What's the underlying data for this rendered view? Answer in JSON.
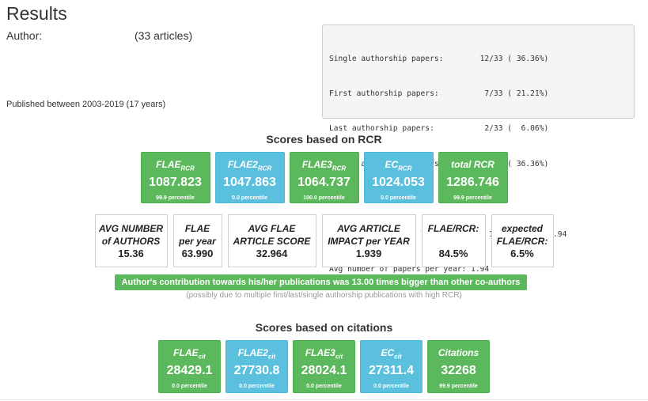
{
  "header": {
    "title": "Results",
    "author_label": "Author:",
    "articles": "(33 articles)",
    "published": "Published between 2003-2019 (17 years)"
  },
  "stats": [
    "Single authorship papers:        12/33 ( 36.36%)",
    "First authorship papers:          7/33 ( 21.21%)",
    "Last authorship papers:           2/33 (  6.06%)",
    "Middle authorship papers:        12/33 ( 36.36%)",
    "",
    "H-index 22, M-index 1.29, fH-index 16, fM-index 0.94",
    "Avg number of papers per year: 1.94"
  ],
  "rcr": {
    "heading": "Scores based on RCR",
    "tiles": [
      {
        "name": "FLAE",
        "sub": "RCR",
        "value": "1087.823",
        "percentile": "99.9 percentile",
        "color": "#5cb85c"
      },
      {
        "name": "FLAE2",
        "sub": "RCR",
        "value": "1047.863",
        "percentile": "0.0 percentile",
        "color": "#5bc0de"
      },
      {
        "name": "FLAE3",
        "sub": "RCR",
        "value": "1064.737",
        "percentile": "100.0 percentile",
        "color": "#5cb85c"
      },
      {
        "name": "EC",
        "sub": "RCR",
        "value": "1024.053",
        "percentile": "0.0 percentile",
        "color": "#5bc0de"
      },
      {
        "name": "total RCR",
        "sub": "",
        "value": "1286.746",
        "percentile": "99.9 percentile",
        "color": "#5cb85c"
      }
    ],
    "boxes": [
      {
        "l1": "AVG NUMBER",
        "l2": "of AUTHORS",
        "value": "15.36"
      },
      {
        "l1": "FLAE",
        "l2": "per year",
        "value": "63.990"
      },
      {
        "l1": "AVG FLAE",
        "l2": "ARTICLE SCORE",
        "value": "32.964"
      },
      {
        "l1": "AVG ARTICLE",
        "l2": "IMPACT per YEAR",
        "value": "1.939"
      },
      {
        "l1": "FLAE/RCR:",
        "l2": "",
        "value": "84.5%"
      },
      {
        "l1": "expected",
        "l2": "FLAE/RCR:",
        "value": "6.5%"
      }
    ],
    "banner": "Author's contribution towards his/her publications was 13.00 times bigger than other co-authors",
    "note": "(possibly due to multiple first/last/single authorship publications with high RCR)"
  },
  "citations": {
    "heading": "Scores based on citations",
    "tiles": [
      {
        "name": "FLAE",
        "sub": "cit",
        "value": "28429.1",
        "percentile": "0.0 percentile",
        "color": "#5cb85c"
      },
      {
        "name": "FLAE2",
        "sub": "cit",
        "value": "27730.8",
        "percentile": "0.0 percentile",
        "color": "#5bc0de"
      },
      {
        "name": "FLAE3",
        "sub": "cit",
        "value": "28024.1",
        "percentile": "0.0 percentile",
        "color": "#5cb85c"
      },
      {
        "name": "EC",
        "sub": "cit",
        "value": "27311.4",
        "percentile": "0.0 percentile",
        "color": "#5bc0de"
      },
      {
        "name": "Citations",
        "sub": "",
        "value": "32268",
        "percentile": "99.9 percentile",
        "color": "#5cb85c"
      }
    ]
  }
}
